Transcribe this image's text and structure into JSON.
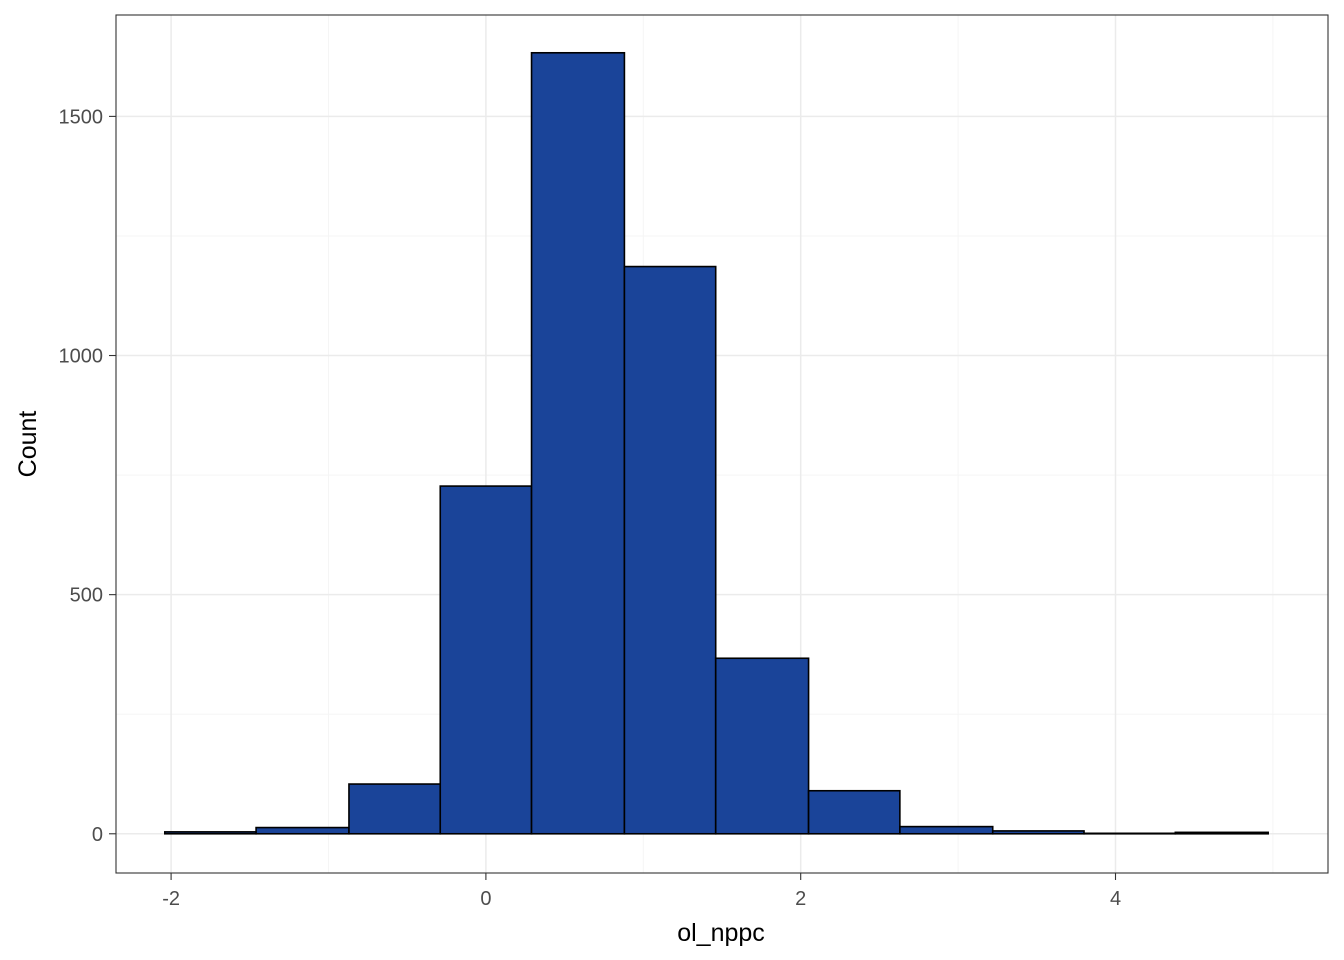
{
  "chart_data": {
    "type": "bar",
    "subtype": "histogram",
    "xlabel": "ol_nppc",
    "ylabel": "Count",
    "xlim": [
      -2.35,
      5.35
    ],
    "ylim": [
      -82,
      1712
    ],
    "x_ticks": [
      -2,
      0,
      2,
      4
    ],
    "x_tick_labels": [
      "-2",
      "0",
      "2",
      "4"
    ],
    "x_minor_ticks": [
      -1,
      1,
      3,
      5
    ],
    "y_ticks": [
      0,
      500,
      1000,
      1500
    ],
    "y_tick_labels": [
      "0",
      "500",
      "1000",
      "1500"
    ],
    "y_minor_ticks": [
      250,
      750,
      1250
    ],
    "grid": true,
    "legend": "none",
    "bins": [
      {
        "x_start": -2.04,
        "x_end": -1.46,
        "count": 4
      },
      {
        "x_start": -1.46,
        "x_end": -0.87,
        "count": 13
      },
      {
        "x_start": -0.87,
        "x_end": -0.29,
        "count": 104
      },
      {
        "x_start": -0.29,
        "x_end": 0.29,
        "count": 727
      },
      {
        "x_start": 0.29,
        "x_end": 0.88,
        "count": 1633
      },
      {
        "x_start": 0.88,
        "x_end": 1.46,
        "count": 1186
      },
      {
        "x_start": 1.46,
        "x_end": 2.05,
        "count": 367
      },
      {
        "x_start": 2.05,
        "x_end": 2.63,
        "count": 90
      },
      {
        "x_start": 2.63,
        "x_end": 3.22,
        "count": 15
      },
      {
        "x_start": 3.22,
        "x_end": 3.8,
        "count": 6
      },
      {
        "x_start": 3.8,
        "x_end": 4.38,
        "count": 1
      },
      {
        "x_start": 4.38,
        "x_end": 4.97,
        "count": 3
      }
    ],
    "colors": {
      "bar_fill": "#1a4499",
      "bar_stroke": "#000000",
      "panel_border": "#333333",
      "grid_major": "#ebebeb",
      "grid_minor": "#f5f5f5",
      "tick_label": "#4d4d4d",
      "axis_title": "#000000"
    }
  }
}
